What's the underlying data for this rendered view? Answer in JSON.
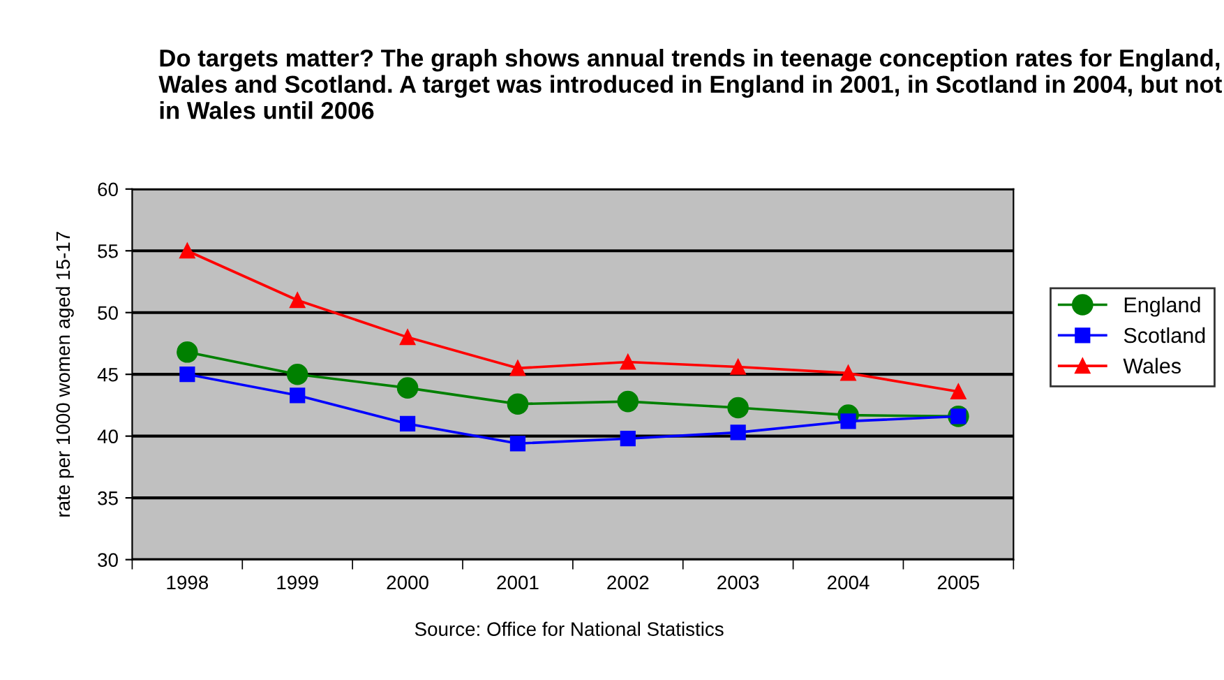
{
  "chart_data": {
    "type": "line",
    "title": "Do targets matter? The graph shows annual trends in teenage conception rates for England, Wales and Scotland. A target was introduced in England in 2001, in Scotland in 2004, but not in Wales until 2006",
    "ylabel": "rate per 1000 women aged 15-17",
    "categories": [
      "1998",
      "1999",
      "2000",
      "2001",
      "2002",
      "2003",
      "2004",
      "2005"
    ],
    "series": [
      {
        "name": "England",
        "color": "#008000",
        "marker": "circle",
        "values": [
          46.8,
          45.0,
          43.9,
          42.6,
          42.8,
          42.3,
          41.7,
          41.6
        ]
      },
      {
        "name": "Scotland",
        "color": "#0000ff",
        "marker": "square",
        "values": [
          45.0,
          43.3,
          41.0,
          39.4,
          39.8,
          40.3,
          41.2,
          41.6
        ]
      },
      {
        "name": "Wales",
        "color": "#ff0000",
        "marker": "triangle",
        "values": [
          55.0,
          51.0,
          48.0,
          45.5,
          46.0,
          45.6,
          45.1,
          43.6
        ]
      }
    ],
    "ylim": [
      30,
      60
    ],
    "yticks": [
      30,
      35,
      40,
      45,
      50,
      55,
      60
    ],
    "grid": "y",
    "legend": "right",
    "line_style": "solid",
    "annotations": [
      "Source: Office for National Statistics"
    ]
  }
}
